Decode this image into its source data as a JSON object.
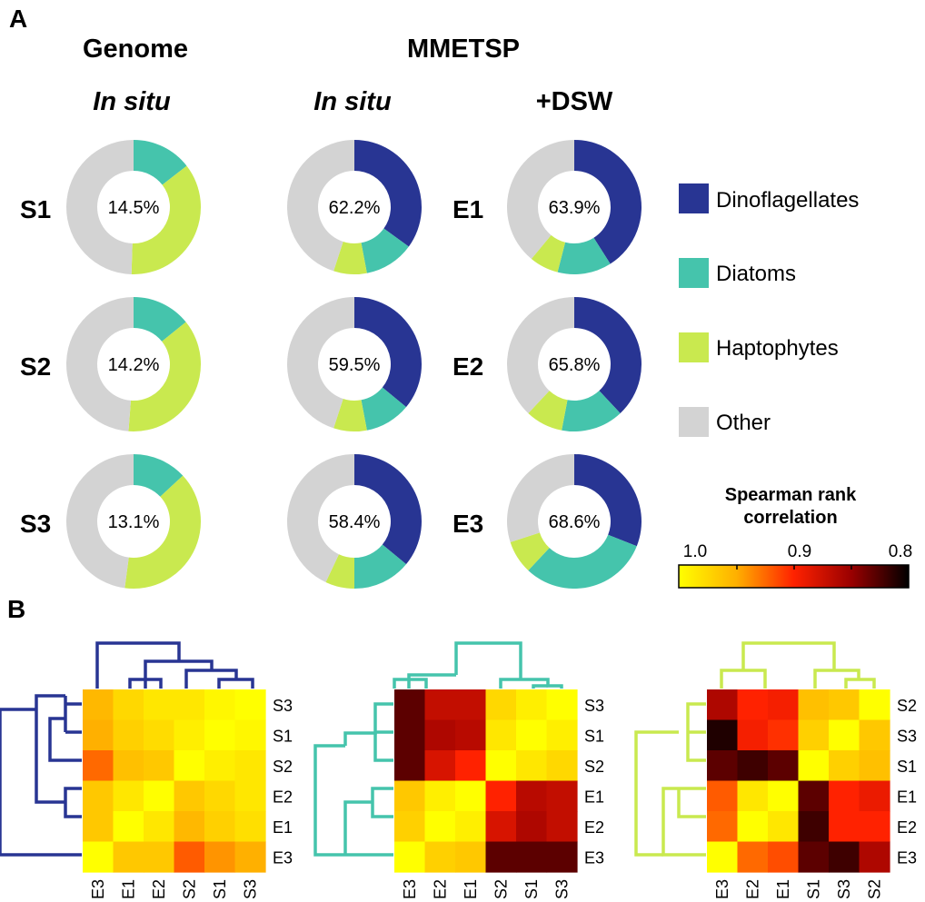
{
  "panel_labels": {
    "a": "A",
    "b": "B"
  },
  "headers": {
    "genome": "Genome",
    "mmetsp": "MMETSP",
    "col1": "In situ",
    "col2": "In situ",
    "col3": "+DSW"
  },
  "row_labels": {
    "left": [
      "S1",
      "S2",
      "S3"
    ],
    "right": [
      "E1",
      "E2",
      "E3"
    ]
  },
  "colors": {
    "dinoflagellates": "#283593",
    "diatoms": "#45c4ac",
    "haptophytes": "#c9e94f",
    "other": "#d3d3d3"
  },
  "legend": [
    {
      "label": "Dinoflagellates",
      "color": "#283593"
    },
    {
      "label": "Diatoms",
      "color": "#45c4ac"
    },
    {
      "label": "Haptophytes",
      "color": "#c9e94f"
    },
    {
      "label": "Other",
      "color": "#d3d3d3"
    }
  ],
  "colorbar": {
    "title_line1": "Spearman rank",
    "title_line2": "correlation",
    "ticks": [
      "1.0",
      "0.9",
      "0.8"
    ],
    "range": [
      1.0,
      0.8
    ]
  },
  "chart_data": [
    {
      "type": "pie",
      "description_col": "Genome In situ",
      "donuts": [
        {
          "row": "S1",
          "label": "14.5%",
          "slices": [
            0,
            14.5,
            36,
            49.5
          ]
        },
        {
          "row": "S2",
          "label": "14.2%",
          "slices": [
            0,
            14.2,
            37,
            48.8
          ]
        },
        {
          "row": "S3",
          "label": "13.1%",
          "slices": [
            0,
            13.1,
            39,
            47.9
          ]
        }
      ]
    },
    {
      "type": "pie",
      "description_col": "MMETSP In situ",
      "donuts": [
        {
          "row": "S1",
          "label": "62.2%",
          "slices": [
            35,
            12,
            8,
            45
          ]
        },
        {
          "row": "S2",
          "label": "59.5%",
          "slices": [
            36,
            11,
            8,
            45
          ]
        },
        {
          "row": "S3",
          "label": "58.4%",
          "slices": [
            36,
            14,
            7,
            43
          ]
        }
      ]
    },
    {
      "type": "pie",
      "description_col": "MMETSP +DSW",
      "donuts": [
        {
          "row": "E1",
          "label": "63.9%",
          "slices": [
            41,
            13,
            7,
            39
          ]
        },
        {
          "row": "E2",
          "label": "65.8%",
          "slices": [
            38,
            15,
            9,
            38
          ]
        },
        {
          "row": "E3",
          "label": "68.6%",
          "slices": [
            31,
            31,
            8,
            30
          ]
        }
      ]
    },
    {
      "type": "heatmap",
      "rows": [
        "S3",
        "S1",
        "S2",
        "E2",
        "E1",
        "E3"
      ],
      "cols": [
        "E3",
        "E1",
        "E2",
        "S2",
        "S1",
        "S3"
      ],
      "range": [
        0.8,
        1.0
      ],
      "values": [
        [
          0.955,
          0.975,
          0.985,
          0.985,
          0.995,
          1.0
        ],
        [
          0.95,
          0.97,
          0.978,
          0.99,
          1.0,
          0.995
        ],
        [
          0.925,
          0.96,
          0.965,
          1.0,
          0.99,
          0.985
        ],
        [
          0.965,
          0.985,
          1.0,
          0.965,
          0.975,
          0.985
        ],
        [
          0.965,
          1.0,
          0.985,
          0.955,
          0.97,
          0.98
        ],
        [
          1.0,
          0.965,
          0.965,
          0.92,
          0.94,
          0.95
        ]
      ]
    },
    {
      "type": "heatmap",
      "rows": [
        "S3",
        "S1",
        "S2",
        "E1",
        "E2",
        "E3"
      ],
      "cols": [
        "E3",
        "E2",
        "E1",
        "S2",
        "S1",
        "S3"
      ],
      "range": [
        0.8,
        1.0
      ],
      "values": [
        [
          0.83,
          0.87,
          0.87,
          0.975,
          0.99,
          1.0
        ],
        [
          0.83,
          0.86,
          0.865,
          0.985,
          1.0,
          0.99
        ],
        [
          0.83,
          0.88,
          0.9,
          1.0,
          0.985,
          0.975
        ],
        [
          0.965,
          0.99,
          1.0,
          0.9,
          0.865,
          0.87
        ],
        [
          0.97,
          1.0,
          0.99,
          0.88,
          0.86,
          0.87
        ],
        [
          1.0,
          0.97,
          0.965,
          0.83,
          0.83,
          0.83
        ]
      ]
    },
    {
      "type": "heatmap",
      "rows": [
        "S2",
        "S3",
        "S1",
        "E1",
        "E2",
        "E3"
      ],
      "cols": [
        "E3",
        "E2",
        "E1",
        "S1",
        "S3",
        "S2"
      ],
      "range": [
        0.8,
        1.0
      ],
      "values": [
        [
          0.86,
          0.9,
          0.895,
          0.96,
          0.965,
          1.0
        ],
        [
          0.81,
          0.895,
          0.905,
          0.97,
          1.0,
          0.965
        ],
        [
          0.83,
          0.82,
          0.83,
          1.0,
          0.97,
          0.96
        ],
        [
          0.92,
          0.985,
          1.0,
          0.83,
          0.9,
          0.89
        ],
        [
          0.925,
          1.0,
          0.985,
          0.82,
          0.9,
          0.9
        ],
        [
          1.0,
          0.925,
          0.915,
          0.83,
          0.82,
          0.86
        ]
      ]
    }
  ]
}
